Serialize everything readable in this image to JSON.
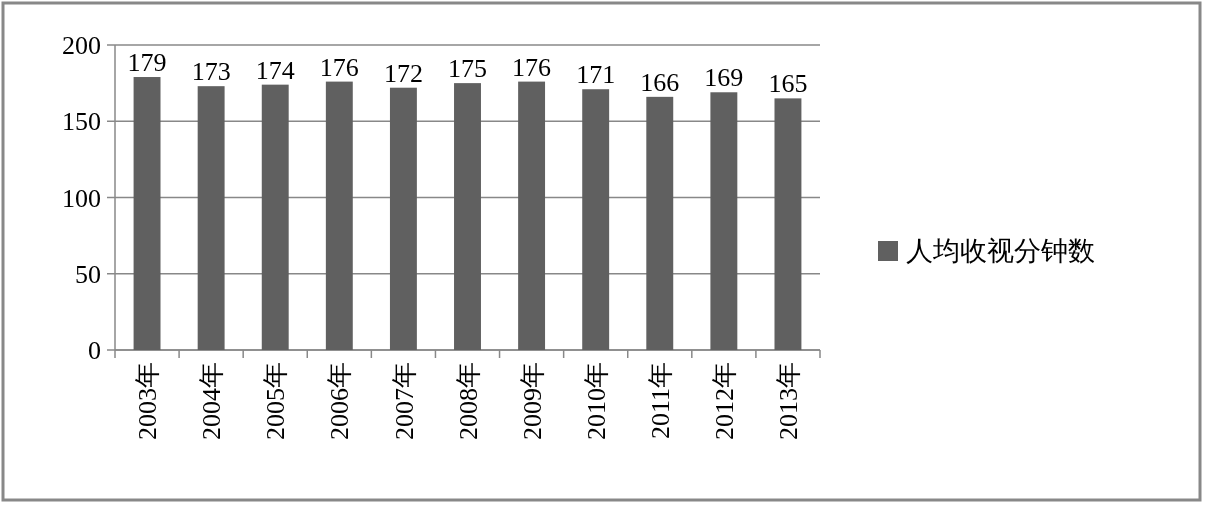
{
  "chart_data": {
    "type": "bar",
    "categories": [
      "2003年",
      "2004年",
      "2005年",
      "2006年",
      "2007年",
      "2008年",
      "2009年",
      "2010年",
      "2011年",
      "2012年",
      "2013年"
    ],
    "series": [
      {
        "name": "人均收视分钟数",
        "color": "#606060",
        "values": [
          179,
          173,
          174,
          176,
          172,
          175,
          176,
          171,
          166,
          169,
          165
        ]
      }
    ],
    "ylim": [
      0,
      200
    ],
    "yticks": [
      0,
      50,
      100,
      150,
      200
    ],
    "grid": "y",
    "legend": "right",
    "data_labels": true
  }
}
